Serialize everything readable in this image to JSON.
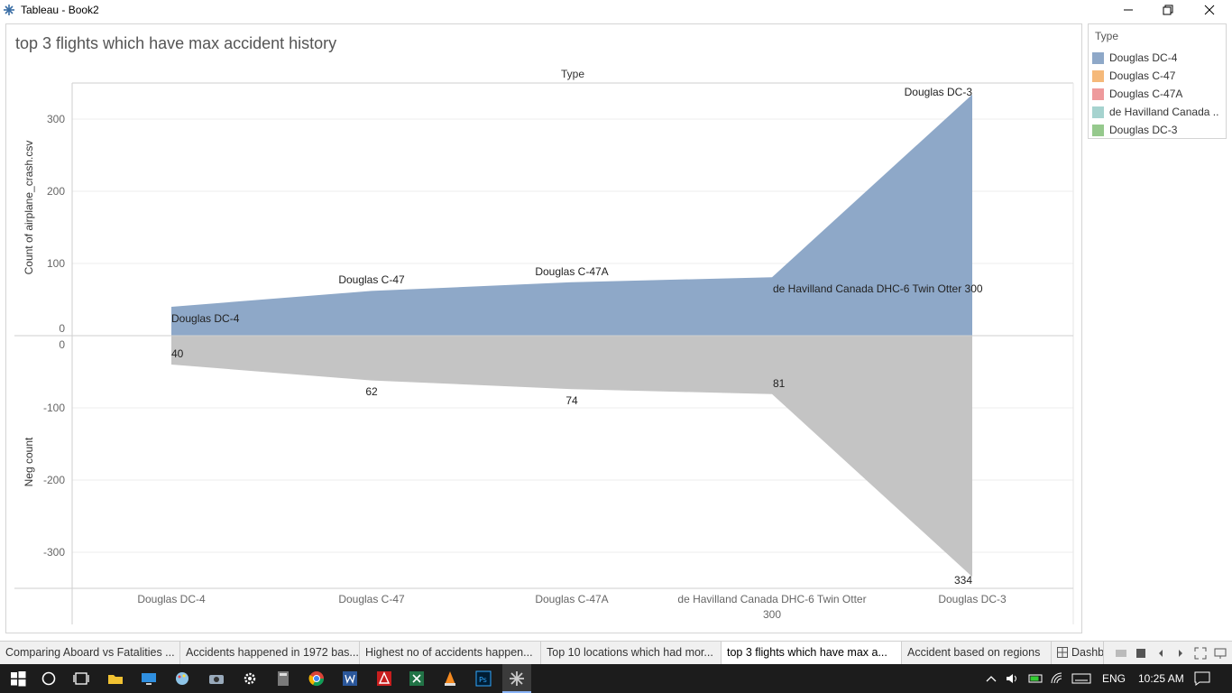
{
  "window": {
    "title": "Tableau - Book2"
  },
  "sheet": {
    "title": "top 3 flights which have max accident history",
    "column_header": "Type"
  },
  "legend": {
    "title": "Type",
    "items": [
      {
        "label": "Douglas DC-4",
        "color": "#8ea8c8"
      },
      {
        "label": "Douglas C-47",
        "color": "#f5b97a"
      },
      {
        "label": "Douglas C-47A",
        "color": "#ee9a9c"
      },
      {
        "label": "de Havilland Canada ..",
        "color": "#a6d3cf"
      },
      {
        "label": "Douglas DC-3",
        "color": "#96c98d"
      }
    ]
  },
  "chart_data": {
    "type": "area",
    "categories": [
      "Douglas DC-4",
      "Douglas C-47",
      "Douglas C-47A",
      "de Havilland Canada DHC-6 Twin Otter 300",
      "Douglas DC-3"
    ],
    "category_labels": [
      [
        "Douglas DC-4"
      ],
      [
        "Douglas C-47"
      ],
      [
        "Douglas C-47A"
      ],
      [
        "de Havilland Canada DHC-6 Twin Otter",
        "300"
      ],
      [
        "Douglas DC-3"
      ]
    ],
    "top_panel": {
      "ylabel": "Count of airplane_crash.csv",
      "ylim": [
        0,
        340
      ],
      "ticks": [
        0,
        100,
        200,
        300
      ],
      "tick_labels": [
        "0",
        "100",
        "200",
        "300"
      ],
      "values": [
        40,
        62,
        74,
        81,
        334
      ],
      "mark_labels": [
        "Douglas DC-4",
        "Douglas C-47",
        "Douglas C-47A",
        "de Havilland Canada DHC-6 Twin Otter 300",
        "Douglas DC-3"
      ],
      "color": "#8ea8c8"
    },
    "bottom_panel": {
      "ylabel": "Neg count",
      "ylim": [
        -350,
        0
      ],
      "ticks": [
        0,
        -100,
        -200,
        -300
      ],
      "tick_labels": [
        "0",
        "-100",
        "-200",
        "-300"
      ],
      "values": [
        -40,
        -62,
        -74,
        -81,
        -334
      ],
      "mark_labels": [
        "40",
        "62",
        "74",
        "81",
        "334"
      ],
      "color": "#c4c4c4"
    },
    "grid": true
  },
  "tabs": [
    "Comparing Aboard vs Fatalities ...",
    "Accidents happened in 1972 bas...",
    "Highest no of accidents happen...",
    "Top 10 locations which had mor...",
    "top 3 flights which have max a...",
    "Accident based on regions",
    "Dashb"
  ],
  "taskbar": {
    "language": "ENG",
    "time": "10:25 AM"
  }
}
